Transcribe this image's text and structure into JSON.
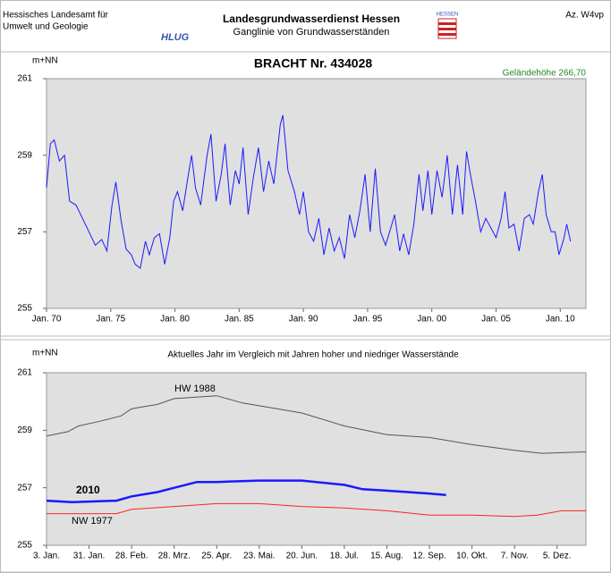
{
  "header": {
    "org_line1": "Hessisches Landesamt für",
    "org_line2": "Umwelt und Geologie",
    "logo": "HLUG",
    "service": "Landesgrundwasserdienst Hessen",
    "subtitle": "Ganglinie von Grundwasserständen",
    "state": "HESSEN",
    "ref": "Az. W4vp"
  },
  "chart_data": [
    {
      "type": "line",
      "title": "BRACHT  Nr. 434028",
      "y_label": "m+NN",
      "annotation": "Geländehöhe 266,70",
      "color": "#1a1aff",
      "x": [
        1970.0,
        1970.3,
        1970.6,
        1971.0,
        1971.4,
        1971.8,
        1972.3,
        1972.8,
        1973.3,
        1973.8,
        1974.3,
        1974.7,
        1975.1,
        1975.4,
        1975.8,
        1976.2,
        1976.6,
        1976.9,
        1977.3,
        1977.7,
        1978.0,
        1978.4,
        1978.8,
        1979.2,
        1979.6,
        1979.9,
        1980.2,
        1980.6,
        1981.0,
        1981.3,
        1981.6,
        1982.0,
        1982.5,
        1982.8,
        1983.2,
        1983.6,
        1983.9,
        1984.3,
        1984.7,
        1985.0,
        1985.3,
        1985.7,
        1986.1,
        1986.5,
        1986.9,
        1987.3,
        1987.7,
        1988.2,
        1988.4,
        1988.8,
        1989.3,
        1989.7,
        1990.0,
        1990.4,
        1990.8,
        1991.2,
        1991.6,
        1992.0,
        1992.4,
        1992.8,
        1993.2,
        1993.6,
        1994.0,
        1994.4,
        1994.8,
        1995.2,
        1995.6,
        1996.0,
        1996.4,
        1996.8,
        1997.1,
        1997.5,
        1997.8,
        1998.2,
        1998.6,
        1999.0,
        1999.3,
        1999.7,
        2000.0,
        2000.4,
        2000.8,
        2001.2,
        2001.6,
        2002.0,
        2002.4,
        2002.7,
        2003.0,
        2003.4,
        2003.8,
        2004.2,
        2004.6,
        2005.0,
        2005.4,
        2005.7,
        2006.0,
        2006.4,
        2006.8,
        2007.2,
        2007.6,
        2007.9,
        2008.3,
        2008.6,
        2008.9,
        2009.3,
        2009.6,
        2009.9,
        2010.3,
        2010.5,
        2010.8
      ],
      "values": [
        258.15,
        259.3,
        259.4,
        258.85,
        259.0,
        257.8,
        257.7,
        257.35,
        257.0,
        256.65,
        256.8,
        256.5,
        257.7,
        258.3,
        257.3,
        256.55,
        256.4,
        256.15,
        256.05,
        256.75,
        256.4,
        256.85,
        256.95,
        256.15,
        256.85,
        257.8,
        258.05,
        257.55,
        258.4,
        259.0,
        258.15,
        257.7,
        259.0,
        259.55,
        257.8,
        258.5,
        259.3,
        257.7,
        258.6,
        258.25,
        259.2,
        257.45,
        258.4,
        259.2,
        258.05,
        258.85,
        258.25,
        259.8,
        260.05,
        258.6,
        258.05,
        257.45,
        258.05,
        257.0,
        256.75,
        257.35,
        256.4,
        257.1,
        256.5,
        256.85,
        256.3,
        257.45,
        256.85,
        257.55,
        258.5,
        257.0,
        258.65,
        257.0,
        256.65,
        257.1,
        257.45,
        256.5,
        256.95,
        256.4,
        257.2,
        258.5,
        257.55,
        258.6,
        257.45,
        258.6,
        257.9,
        259.0,
        257.45,
        258.75,
        257.45,
        259.1,
        258.5,
        257.8,
        257.0,
        257.35,
        257.1,
        256.85,
        257.35,
        258.05,
        257.1,
        257.2,
        256.5,
        257.35,
        257.45,
        257.2,
        258.05,
        258.5,
        257.45,
        257.0,
        257.0,
        256.4,
        256.85,
        257.2,
        256.75
      ],
      "xlim": [
        1970,
        2012
      ],
      "xticks": [
        {
          "value": 1970,
          "label": "Jan. 70"
        },
        {
          "value": 1975,
          "label": "Jan. 75"
        },
        {
          "value": 1980,
          "label": "Jan. 80"
        },
        {
          "value": 1985,
          "label": "Jan. 85"
        },
        {
          "value": 1990,
          "label": "Jan. 90"
        },
        {
          "value": 1995,
          "label": "Jan. 95"
        },
        {
          "value": 2000,
          "label": "Jan. 00"
        },
        {
          "value": 2005,
          "label": "Jan. 05"
        },
        {
          "value": 2010,
          "label": "Jan. 10"
        }
      ],
      "ylim": [
        255,
        261
      ],
      "yticks": [
        255,
        257,
        259,
        261
      ],
      "grid": false
    },
    {
      "type": "line",
      "title": "Aktuelles Jahr im Vergleich mit Jahren hoher und niedriger Wasserstände",
      "y_label": "m+NN",
      "series": [
        {
          "name": "HW 1988",
          "color": "#555555",
          "linewidth": 1,
          "x": [
            3,
            17,
            24,
            37,
            52,
            59,
            76,
            87,
            115,
            132,
            149,
            171,
            199,
            227,
            255,
            283,
            311,
            329,
            358
          ],
          "values": [
            258.8,
            258.95,
            259.15,
            259.3,
            259.5,
            259.75,
            259.9,
            260.1,
            260.2,
            259.95,
            259.8,
            259.6,
            259.15,
            258.85,
            258.75,
            258.5,
            258.3,
            258.2,
            258.25
          ]
        },
        {
          "name": "2010",
          "color": "#1a1aff",
          "linewidth": 2.5,
          "x": [
            3,
            20,
            49,
            59,
            76,
            87,
            102,
            115,
            143,
            171,
            199,
            211,
            227,
            255,
            266
          ],
          "values": [
            256.55,
            256.5,
            256.55,
            256.7,
            256.85,
            257.0,
            257.2,
            257.2,
            257.25,
            257.25,
            257.1,
            256.95,
            256.9,
            256.8,
            256.75
          ]
        },
        {
          "name": "NW 1977",
          "color": "#ff2020",
          "linewidth": 1,
          "x": [
            3,
            31,
            49,
            59,
            87,
            115,
            143,
            171,
            199,
            227,
            255,
            283,
            311,
            326,
            342,
            358
          ],
          "values": [
            256.1,
            256.1,
            256.1,
            256.25,
            256.35,
            256.45,
            256.45,
            256.35,
            256.3,
            256.2,
            256.05,
            256.05,
            256.0,
            256.05,
            256.2,
            256.2
          ]
        }
      ],
      "xlim": [
        3,
        358
      ],
      "xticks": [
        {
          "value": 3,
          "label": "3. Jan."
        },
        {
          "value": 31,
          "label": "31. Jan."
        },
        {
          "value": 59,
          "label": "28. Feb."
        },
        {
          "value": 87,
          "label": "28. Mrz."
        },
        {
          "value": 115,
          "label": "25. Apr."
        },
        {
          "value": 143,
          "label": "23. Mai."
        },
        {
          "value": 171,
          "label": "20. Jun."
        },
        {
          "value": 199,
          "label": "18. Jul."
        },
        {
          "value": 227,
          "label": "15. Aug."
        },
        {
          "value": 255,
          "label": "12. Sep."
        },
        {
          "value": 283,
          "label": "10. Okt."
        },
        {
          "value": 311,
          "label": "7. Nov."
        },
        {
          "value": 339,
          "label": "5. Dez."
        }
      ],
      "ylim": [
        255,
        261
      ],
      "yticks": [
        255,
        257,
        259,
        261
      ],
      "grid": false
    }
  ]
}
